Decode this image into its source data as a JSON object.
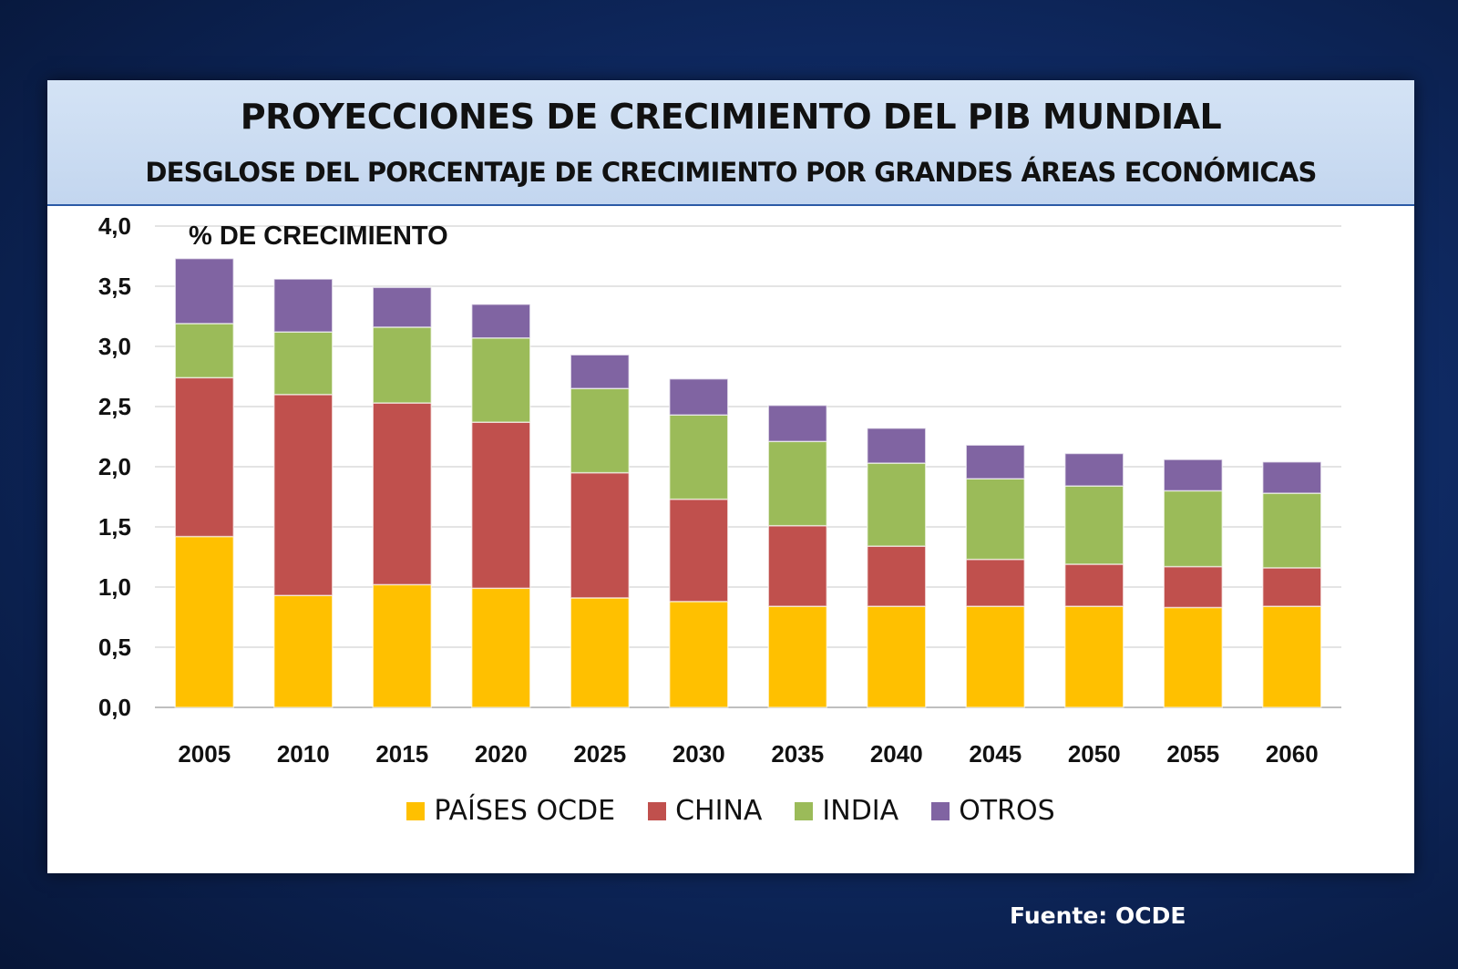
{
  "source_text": "Fuente:  OCDE",
  "chart_data": {
    "type": "bar",
    "stacked": true,
    "title": "PROYECCIONES DE CRECIMIENTO DEL PIB MUNDIAL",
    "subtitle": "DESGLOSE DEL PORCENTAJE DE CRECIMIENTO POR GRANDES ÁREAS ECONÓMICAS",
    "ylabel": "% DE CRECIMIENTO",
    "xlabel": "",
    "ylim": [
      0,
      4
    ],
    "yticks": [
      "0,0",
      "0,5",
      "1,0",
      "1,5",
      "2,0",
      "2,5",
      "3,0",
      "3,5",
      "4,0"
    ],
    "grid": true,
    "legend_position": "bottom",
    "categories": [
      "2005",
      "2010",
      "2015",
      "2020",
      "2025",
      "2030",
      "2035",
      "2040",
      "2045",
      "2050",
      "2055",
      "2060"
    ],
    "series": [
      {
        "name": "PAÍSES OCDE",
        "color": "#ffc000",
        "values": [
          1.42,
          0.93,
          1.02,
          0.99,
          0.91,
          0.88,
          0.84,
          0.84,
          0.84,
          0.84,
          0.83,
          0.84
        ]
      },
      {
        "name": "CHINA",
        "color": "#c0504d",
        "values": [
          1.32,
          1.67,
          1.51,
          1.38,
          1.04,
          0.85,
          0.67,
          0.5,
          0.39,
          0.35,
          0.34,
          0.32
        ]
      },
      {
        "name": "INDIA",
        "color": "#9bbb59",
        "values": [
          0.45,
          0.52,
          0.63,
          0.7,
          0.7,
          0.7,
          0.7,
          0.69,
          0.67,
          0.65,
          0.63,
          0.62
        ]
      },
      {
        "name": "OTROS",
        "color": "#8064a2",
        "values": [
          0.54,
          0.44,
          0.33,
          0.28,
          0.28,
          0.3,
          0.3,
          0.29,
          0.28,
          0.27,
          0.26,
          0.26
        ]
      }
    ]
  }
}
